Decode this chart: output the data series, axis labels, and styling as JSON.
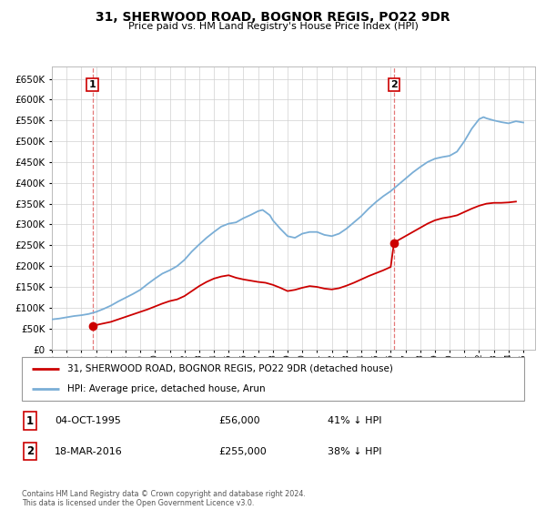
{
  "title": "31, SHERWOOD ROAD, BOGNOR REGIS, PO22 9DR",
  "subtitle": "Price paid vs. HM Land Registry's House Price Index (HPI)",
  "ytick_vals": [
    0,
    50000,
    100000,
    150000,
    200000,
    250000,
    300000,
    350000,
    400000,
    450000,
    500000,
    550000,
    600000,
    650000
  ],
  "ylim": [
    0,
    680000
  ],
  "xlim_start": 1993.0,
  "xlim_end": 2025.8,
  "xtick_years": [
    1993,
    1994,
    1995,
    1996,
    1997,
    1998,
    1999,
    2000,
    2001,
    2002,
    2003,
    2004,
    2005,
    2006,
    2007,
    2008,
    2009,
    2010,
    2011,
    2012,
    2013,
    2014,
    2015,
    2016,
    2017,
    2018,
    2019,
    2020,
    2021,
    2022,
    2023,
    2024,
    2025
  ],
  "sale1_x": 1995.75,
  "sale1_y": 56000,
  "sale1_label": "1",
  "sale2_x": 2016.22,
  "sale2_y": 255000,
  "sale2_label": "2",
  "sale_color": "#cc0000",
  "hpi_color": "#7aaed6",
  "vline_color": "#e06060",
  "grid_color": "#d0d0d0",
  "background_color": "#ffffff",
  "plot_bg_color": "#ffffff",
  "legend1_text": "31, SHERWOOD ROAD, BOGNOR REGIS, PO22 9DR (detached house)",
  "legend2_text": "HPI: Average price, detached house, Arun",
  "table_row1": [
    "1",
    "04-OCT-1995",
    "£56,000",
    "41% ↓ HPI"
  ],
  "table_row2": [
    "2",
    "18-MAR-2016",
    "£255,000",
    "38% ↓ HPI"
  ],
  "footer": "Contains HM Land Registry data © Crown copyright and database right 2024.\nThis data is licensed under the Open Government Licence v3.0.",
  "hpi_data_x": [
    1993.0,
    1993.5,
    1994.0,
    1994.5,
    1995.0,
    1995.5,
    1996.0,
    1996.5,
    1997.0,
    1997.5,
    1998.0,
    1998.5,
    1999.0,
    1999.5,
    2000.0,
    2000.5,
    2001.0,
    2001.5,
    2002.0,
    2002.5,
    2003.0,
    2003.5,
    2004.0,
    2004.5,
    2005.0,
    2005.5,
    2006.0,
    2006.5,
    2007.0,
    2007.3,
    2007.5,
    2007.8,
    2008.0,
    2008.5,
    2009.0,
    2009.5,
    2010.0,
    2010.5,
    2011.0,
    2011.5,
    2012.0,
    2012.5,
    2013.0,
    2013.5,
    2014.0,
    2014.5,
    2015.0,
    2015.5,
    2016.0,
    2016.5,
    2017.0,
    2017.5,
    2018.0,
    2018.5,
    2019.0,
    2019.5,
    2020.0,
    2020.5,
    2021.0,
    2021.5,
    2022.0,
    2022.3,
    2022.5,
    2023.0,
    2023.5,
    2024.0,
    2024.5,
    2025.0
  ],
  "hpi_data_y": [
    72000,
    74000,
    77000,
    80000,
    82000,
    85000,
    90000,
    97000,
    105000,
    115000,
    124000,
    133000,
    143000,
    157000,
    170000,
    182000,
    190000,
    200000,
    215000,
    235000,
    252000,
    268000,
    282000,
    295000,
    302000,
    305000,
    315000,
    323000,
    332000,
    335000,
    330000,
    322000,
    310000,
    290000,
    272000,
    268000,
    278000,
    282000,
    282000,
    275000,
    272000,
    278000,
    290000,
    305000,
    320000,
    338000,
    354000,
    368000,
    380000,
    395000,
    410000,
    425000,
    438000,
    450000,
    458000,
    462000,
    465000,
    475000,
    500000,
    530000,
    553000,
    558000,
    555000,
    550000,
    546000,
    543000,
    548000,
    545000
  ],
  "sale_line_x": [
    1995.75,
    1996.2,
    1997.0,
    1997.5,
    1998.0,
    1998.5,
    1999.0,
    1999.5,
    2000.0,
    2000.5,
    2001.0,
    2001.5,
    2002.0,
    2002.5,
    2003.0,
    2003.5,
    2004.0,
    2004.5,
    2005.0,
    2005.5,
    2006.0,
    2006.5,
    2007.0,
    2007.5,
    2008.0,
    2008.5,
    2009.0,
    2009.5,
    2010.0,
    2010.5,
    2011.0,
    2011.5,
    2012.0,
    2012.5,
    2013.0,
    2013.5,
    2014.0,
    2014.5,
    2015.0,
    2015.5,
    2016.0,
    2016.22,
    2016.5,
    2017.0,
    2017.5,
    2018.0,
    2018.5,
    2019.0,
    2019.5,
    2020.0,
    2020.5,
    2021.0,
    2021.5,
    2022.0,
    2022.5,
    2023.0,
    2023.5,
    2024.0,
    2024.5
  ],
  "sale_line_y": [
    56000,
    60000,
    66000,
    72000,
    78000,
    84000,
    90000,
    96000,
    103000,
    110000,
    116000,
    120000,
    128000,
    140000,
    152000,
    162000,
    170000,
    175000,
    178000,
    172000,
    168000,
    165000,
    162000,
    160000,
    155000,
    148000,
    140000,
    143000,
    148000,
    152000,
    150000,
    146000,
    144000,
    147000,
    153000,
    160000,
    168000,
    176000,
    183000,
    190000,
    198000,
    255000,
    262000,
    272000,
    282000,
    292000,
    302000,
    310000,
    315000,
    318000,
    322000,
    330000,
    338000,
    345000,
    350000,
    352000,
    352000,
    353000,
    355000
  ]
}
